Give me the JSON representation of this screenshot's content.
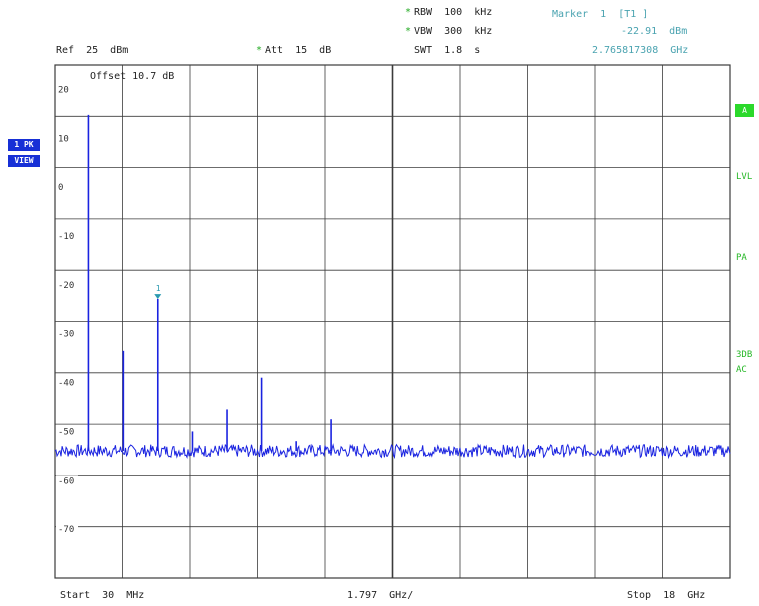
{
  "header": {
    "rbw": "RBW  100  kHz",
    "vbw": "VBW  300  kHz",
    "swt": "SWT  1.8  s",
    "ref": "Ref  25  dBm",
    "att": "Att  15  dB",
    "marker_title": "Marker  1  [T1 ]",
    "marker_level": "-22.91  dBm",
    "marker_freq": "2.765817308  GHz",
    "offset": "Offset   10.7  dB"
  },
  "left_badges": {
    "trace": "1 PK",
    "mode": "VIEW"
  },
  "right_labels": {
    "a": "A",
    "lvl": "LVL",
    "px": "PA",
    "db3": "3DB",
    "ac": "AC"
  },
  "footer": {
    "start": "Start  30  MHz",
    "div": "1.797  GHz/",
    "stop": "Stop  18  GHz"
  },
  "colors": {
    "trace": "#1a23e0",
    "grid": "#3b3b3b",
    "marker": "#2a9ab0",
    "status_green": "#2bd92b"
  },
  "chart_data": {
    "type": "line",
    "x_unit": "GHz",
    "y_unit": "dBm",
    "xlim": [
      0.03,
      18
    ],
    "ylim": [
      -80,
      25
    ],
    "grid": true,
    "yticks": [
      20,
      10,
      0,
      -10,
      -20,
      -30,
      -40,
      -50,
      -60,
      -70
    ],
    "noise_floor": -54,
    "peaks": [
      {
        "x": 0.92,
        "y": 14.8
      },
      {
        "x": 1.85,
        "y": -33.5
      },
      {
        "x": 2.766,
        "y": -22.9
      },
      {
        "x": 3.69,
        "y": -50
      },
      {
        "x": 4.61,
        "y": -45.5
      },
      {
        "x": 5.53,
        "y": -39
      },
      {
        "x": 6.45,
        "y": -52
      },
      {
        "x": 7.38,
        "y": -47.5
      }
    ],
    "marker": {
      "label": "1",
      "x": 2.765817308,
      "y": -22.91
    }
  }
}
